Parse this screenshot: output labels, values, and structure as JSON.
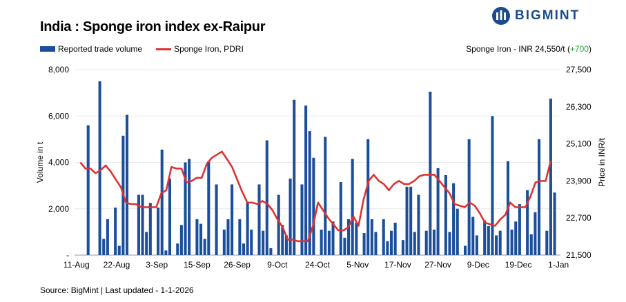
{
  "header": {
    "title": "India : Sponge iron index ex-Raipur",
    "logo_text": "BIGMINT"
  },
  "legend": {
    "bars_label": "Reported trade volume",
    "line_label": "Sponge Iron, PDRI"
  },
  "price_note": {
    "text": "Sponge Iron - INR 24,550/t (",
    "change": "+700",
    "close": ")"
  },
  "footer": {
    "source": "Source: BigMint | Last updated - 1-1-2026"
  },
  "colors": {
    "bar": "#1b4f9c",
    "line": "#e03131",
    "change": "#2e9e3f",
    "logo": "#1a4b8c"
  },
  "chart_data": {
    "type": "bar+line",
    "title": "India : Sponge iron index ex-Raipur",
    "ylabel_left": "Volume in t",
    "ylabel_right": "Price in INR/t",
    "y_left_range": [
      0,
      8000
    ],
    "y_left_ticks": [
      "-",
      "2,000",
      "4,000",
      "6,000",
      "8,000"
    ],
    "y_right_range": [
      21500,
      27500
    ],
    "y_right_ticks": [
      "21,500",
      "22,700",
      "23,900",
      "25,100",
      "26,300",
      "27,500"
    ],
    "x_tick_labels": [
      "11-Aug",
      "22-Aug",
      "3-Sep",
      "15-Sep",
      "26-Sep",
      "9-Oct",
      "24-Oct",
      "5-Nov",
      "17-Nov",
      "27-Nov",
      "9-Dec",
      "19-Dec",
      "1-Jan"
    ],
    "x_tick_positions": [
      0,
      10,
      20,
      30,
      40,
      50,
      60,
      70,
      80,
      90,
      100,
      110,
      120
    ],
    "series": [
      {
        "name": "Reported trade volume",
        "type": "bar",
        "values": [
          0,
          0,
          5600,
          0,
          7500,
          700,
          1550,
          2050,
          400,
          5150,
          6050,
          0,
          2600,
          2600,
          1000,
          2250,
          2050,
          4550,
          200,
          3300,
          500,
          1300,
          4000,
          4150,
          1550,
          1350,
          700,
          4050,
          3050,
          0,
          1100,
          1550,
          3050,
          1550,
          500,
          2300,
          1100,
          3050,
          1050,
          4950,
          300,
          2600,
          1300,
          850,
          3300,
          6700,
          3050,
          6450,
          5350,
          4200,
          1100,
          5100,
          1050,
          1450,
          3150,
          750,
          1550,
          4150,
          1400,
          950,
          5000,
          1550,
          1000,
          1550,
          600,
          1050,
          1400,
          650,
          2950,
          2950,
          1000,
          2600,
          1050,
          7050,
          1100,
          3750,
          3450,
          1000,
          3100,
          2000,
          400,
          5000,
          1650,
          850,
          1500,
          1250,
          6000,
          850,
          1050,
          4050,
          1100,
          1450,
          2200,
          2800,
          900,
          1850,
          5000,
          1050,
          6750,
          2700
        ],
        "x_index_start": 0
      },
      {
        "name": "Sponge Iron, PDRI",
        "type": "line",
        "points": [
          [
            0,
            24500
          ],
          [
            1,
            24300
          ],
          [
            2,
            24300
          ],
          [
            3,
            24150
          ],
          [
            4,
            24250
          ],
          [
            5,
            24400
          ],
          [
            6,
            24200
          ],
          [
            7,
            23950
          ],
          [
            8,
            23700
          ],
          [
            9,
            23200
          ],
          [
            10,
            23150
          ],
          [
            11,
            23150
          ],
          [
            12,
            23050
          ],
          [
            13,
            23050
          ],
          [
            14,
            23050
          ],
          [
            15,
            23050
          ],
          [
            16,
            23500
          ],
          [
            17,
            23600
          ],
          [
            18,
            24350
          ],
          [
            19,
            24300
          ],
          [
            20,
            24300
          ],
          [
            21,
            23850
          ],
          [
            22,
            23900
          ],
          [
            23,
            24000
          ],
          [
            24,
            24000
          ],
          [
            25,
            24450
          ],
          [
            26,
            24650
          ],
          [
            27,
            24750
          ],
          [
            28,
            24850
          ],
          [
            29,
            24600
          ],
          [
            30,
            24350
          ],
          [
            31,
            23950
          ],
          [
            32,
            23550
          ],
          [
            33,
            23200
          ],
          [
            34,
            23200
          ],
          [
            35,
            23150
          ],
          [
            36,
            23250
          ],
          [
            37,
            23150
          ],
          [
            38,
            22950
          ],
          [
            39,
            22650
          ],
          [
            40,
            22400
          ],
          [
            41,
            22000
          ],
          [
            42,
            22000
          ],
          [
            43,
            21950
          ],
          [
            44,
            21950
          ],
          [
            45,
            21950
          ],
          [
            46,
            22450
          ],
          [
            47,
            23200
          ],
          [
            48,
            22950
          ],
          [
            49,
            22700
          ],
          [
            50,
            22500
          ],
          [
            51,
            22300
          ],
          [
            52,
            22300
          ],
          [
            53,
            22400
          ],
          [
            54,
            22750
          ],
          [
            55,
            22450
          ],
          [
            56,
            23300
          ],
          [
            57,
            23900
          ],
          [
            58,
            24100
          ],
          [
            59,
            23900
          ],
          [
            60,
            23800
          ],
          [
            61,
            23600
          ],
          [
            62,
            23800
          ],
          [
            63,
            23900
          ],
          [
            64,
            23800
          ],
          [
            65,
            23800
          ],
          [
            66,
            23900
          ],
          [
            67,
            24050
          ],
          [
            68,
            24100
          ],
          [
            69,
            24100
          ],
          [
            70,
            24100
          ],
          [
            71,
            23900
          ],
          [
            72,
            23700
          ],
          [
            73,
            23500
          ],
          [
            74,
            23150
          ],
          [
            75,
            23100
          ],
          [
            76,
            23050
          ],
          [
            77,
            23200
          ],
          [
            78,
            23100
          ],
          [
            79,
            22850
          ],
          [
            80,
            22550
          ],
          [
            81,
            22500
          ],
          [
            82,
            22450
          ],
          [
            83,
            22650
          ],
          [
            84,
            22800
          ],
          [
            85,
            23200
          ],
          [
            86,
            23050
          ],
          [
            87,
            23050
          ],
          [
            88,
            23050
          ],
          [
            89,
            23400
          ],
          [
            90,
            23850
          ],
          [
            91,
            23900
          ],
          [
            92,
            23900
          ],
          [
            93,
            24550
          ]
        ],
        "x_index_start": 0
      }
    ],
    "source": "Source: BigMint | Last updated - 1-1-2026"
  }
}
